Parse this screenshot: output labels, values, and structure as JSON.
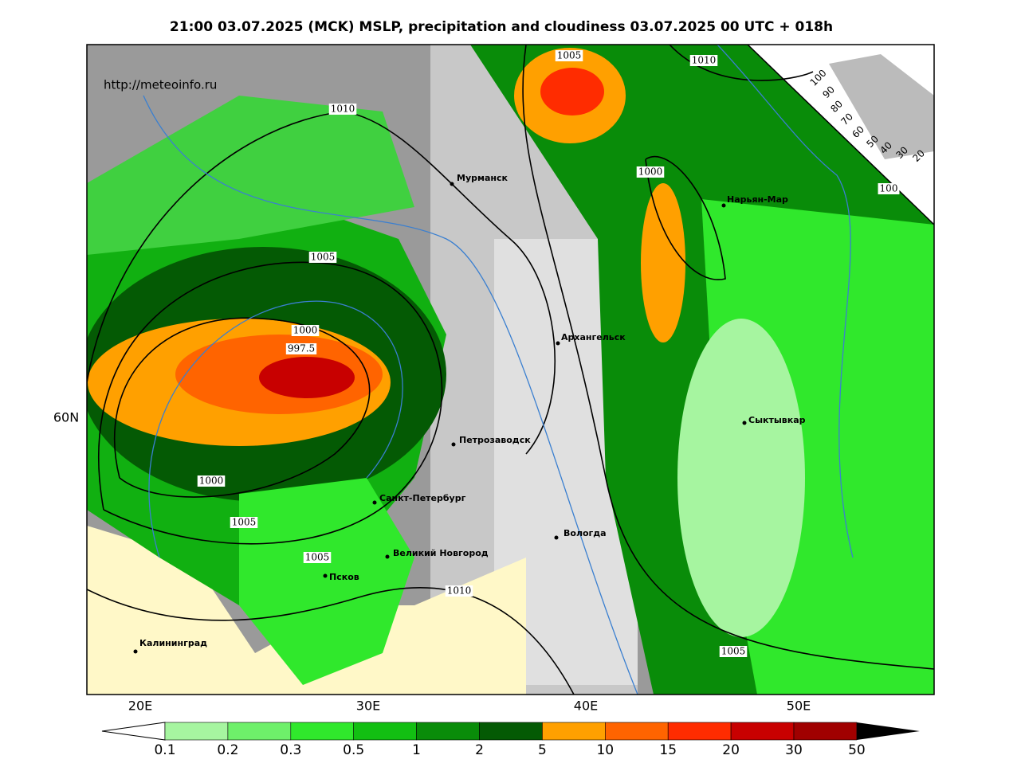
{
  "header": {
    "title": "21:00 03.07.2025 (MCK) MSLP, precipitation and cloudiness 03.07.2025 00 UTC + 018h"
  },
  "map": {
    "url": "http://meteoinfo.ru",
    "cities": [
      {
        "label": "Мурманск"
      },
      {
        "label": "Нарьян-Мар"
      },
      {
        "label": "Архангельск"
      },
      {
        "label": "Сыктывкар"
      },
      {
        "label": "Петрозаводск"
      },
      {
        "label": "Санкт-Петербург"
      },
      {
        "label": "Вологда"
      },
      {
        "label": "Великий Новгород"
      },
      {
        "label": "Псков"
      },
      {
        "label": "Калининград"
      }
    ],
    "isobar_labels": [
      "1010",
      "1005",
      "1010",
      "1000",
      "1005",
      "1000",
      "997.5",
      "1000",
      "1005",
      "1005",
      "1010",
      "1005",
      "100"
    ],
    "lat_labels": [
      "60N"
    ],
    "lon_labels": [
      "20E",
      "30E",
      "40E",
      "50E"
    ],
    "cloudiness_scale": [
      "100",
      "90",
      "80",
      "70",
      "60",
      "50",
      "40",
      "30",
      "20"
    ]
  },
  "legend": {
    "ticks": [
      0.1,
      0.2,
      0.3,
      0.5,
      1,
      2,
      5,
      10,
      15,
      20,
      30,
      50
    ],
    "colors": [
      "#a6f5a0",
      "#6ef06a",
      "#30e82c",
      "#12bf12",
      "#098c09",
      "#045a04",
      "#ffa000",
      "#ff6400",
      "#ff2c00",
      "#c80000",
      "#a00000"
    ]
  }
}
